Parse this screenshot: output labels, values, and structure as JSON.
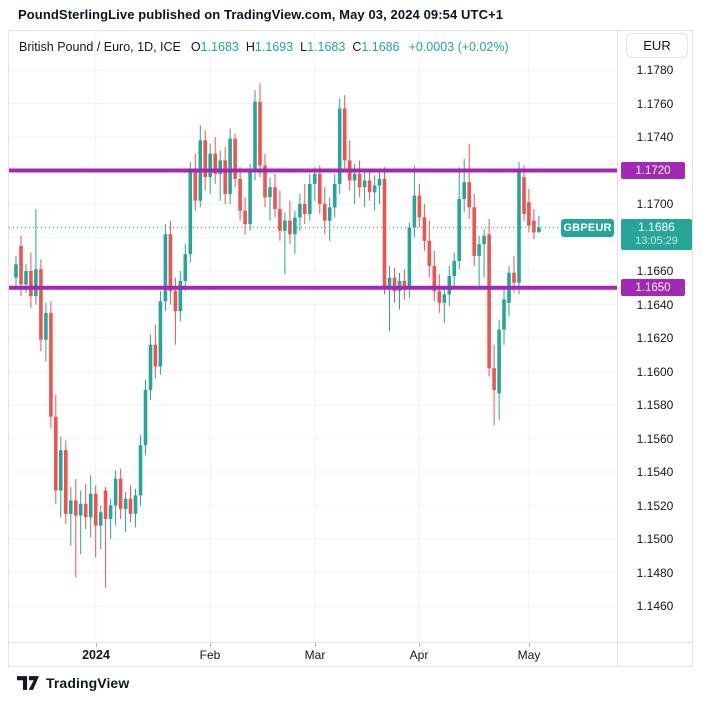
{
  "header": {
    "attribution": "PoundSterlingLive published on TradingView.com, May 03, 2024 09:54 UTC+1"
  },
  "legend": {
    "symbol": "British Pound / Euro, 1D, ICE",
    "ohlc": [
      {
        "label": "O",
        "value": "1.1683"
      },
      {
        "label": "H",
        "value": "1.1693"
      },
      {
        "label": "L",
        "value": "1.1683"
      },
      {
        "label": "C",
        "value": "1.1686"
      }
    ],
    "change": "+0.0003 (+0.02%)"
  },
  "currency_button": {
    "label": "EUR"
  },
  "price_scale": {
    "visible_ticks": [
      1.178,
      1.176,
      1.174,
      1.17,
      1.166,
      1.164,
      1.162,
      1.16,
      1.158,
      1.156,
      1.154,
      1.152,
      1.15,
      1.148,
      1.146
    ]
  },
  "levels": [
    {
      "price": 1.172,
      "label": "1.1720"
    },
    {
      "price": 1.165,
      "label": "1.1650"
    }
  ],
  "last_price": {
    "symbol_label": "GBPEUR",
    "price": 1.1686,
    "label": "1.1686",
    "countdown": "13:05:29"
  },
  "footer": {
    "brand": "TradingView"
  },
  "colors": {
    "up": "#26a69a",
    "down": "#ef5350",
    "level": "#a228b5",
    "last_price_line": "#26a69a",
    "grid": "#f0f3fa",
    "border": "#e0e3eb",
    "text": "#131722"
  },
  "chart_data": {
    "type": "candlestick",
    "title": "British Pound / Euro, 1D, ICE",
    "symbol": "GBPEUR",
    "timeframe": "1D",
    "y_axis": {
      "min": 1.146,
      "max": 1.178,
      "tick_step": 0.002
    },
    "x_axis_months": [
      {
        "label": "2024",
        "candle_index": 16,
        "bold": true
      },
      {
        "label": "Feb",
        "candle_index": 39,
        "bold": false
      },
      {
        "label": "Mar",
        "candle_index": 60,
        "bold": false
      },
      {
        "label": "Apr",
        "candle_index": 81,
        "bold": false
      },
      {
        "label": "May",
        "candle_index": 103,
        "bold": false
      }
    ],
    "horizontal_levels": [
      1.172,
      1.165
    ],
    "last_price_dotted_line": 1.1686,
    "candles_format": [
      "open",
      "high",
      "low",
      "close"
    ],
    "candles": [
      [
        1.1656,
        1.1669,
        1.165,
        1.1664
      ],
      [
        1.1675,
        1.1681,
        1.1645,
        1.1652
      ],
      [
        1.1652,
        1.1664,
        1.1647,
        1.166
      ],
      [
        1.166,
        1.1671,
        1.1638,
        1.1645
      ],
      [
        1.1645,
        1.1697,
        1.164,
        1.1661
      ],
      [
        1.1661,
        1.1667,
        1.1612,
        1.1619
      ],
      [
        1.1619,
        1.1641,
        1.1606,
        1.1635
      ],
      [
        1.1635,
        1.1642,
        1.1566,
        1.1573
      ],
      [
        1.1573,
        1.1586,
        1.1521,
        1.1529
      ],
      [
        1.1529,
        1.1561,
        1.1513,
        1.1553
      ],
      [
        1.1553,
        1.1559,
        1.1509,
        1.1515
      ],
      [
        1.1515,
        1.1531,
        1.1496,
        1.1523
      ],
      [
        1.1523,
        1.1536,
        1.1477,
        1.1514
      ],
      [
        1.1514,
        1.1529,
        1.1491,
        1.1521
      ],
      [
        1.1521,
        1.1533,
        1.1506,
        1.1513
      ],
      [
        1.1513,
        1.1538,
        1.1501,
        1.1527
      ],
      [
        1.1527,
        1.1532,
        1.1489,
        1.1508
      ],
      [
        1.1508,
        1.152,
        1.1494,
        1.1516
      ],
      [
        1.1529,
        1.1531,
        1.1471,
        1.1512
      ],
      [
        1.1512,
        1.1524,
        1.15,
        1.152
      ],
      [
        1.152,
        1.1541,
        1.1508,
        1.1536
      ],
      [
        1.1536,
        1.1542,
        1.1512,
        1.1518
      ],
      [
        1.1518,
        1.1528,
        1.1504,
        1.1524
      ],
      [
        1.1524,
        1.1532,
        1.151,
        1.1515
      ],
      [
        1.1515,
        1.153,
        1.1507,
        1.1526
      ],
      [
        1.1526,
        1.1562,
        1.152,
        1.1556
      ],
      [
        1.1556,
        1.1595,
        1.155,
        1.1589
      ],
      [
        1.1589,
        1.1622,
        1.1583,
        1.1616
      ],
      [
        1.1616,
        1.1628,
        1.1596,
        1.1603
      ],
      [
        1.1603,
        1.1648,
        1.1598,
        1.1642
      ],
      [
        1.1642,
        1.1688,
        1.1636,
        1.1682
      ],
      [
        1.1682,
        1.169,
        1.164,
        1.1648
      ],
      [
        1.1648,
        1.1656,
        1.1616,
        1.1636
      ],
      [
        1.1636,
        1.166,
        1.163,
        1.1654
      ],
      [
        1.1654,
        1.1676,
        1.1648,
        1.167
      ],
      [
        1.167,
        1.1725,
        1.1665,
        1.172
      ],
      [
        1.172,
        1.173,
        1.1696,
        1.1702
      ],
      [
        1.1702,
        1.1747,
        1.1698,
        1.1738
      ],
      [
        1.1738,
        1.1744,
        1.1708,
        1.1716
      ],
      [
        1.1716,
        1.1736,
        1.1706,
        1.173
      ],
      [
        1.173,
        1.174,
        1.1712,
        1.1718
      ],
      [
        1.1718,
        1.1732,
        1.1702,
        1.1726
      ],
      [
        1.1726,
        1.1734,
        1.17,
        1.1706
      ],
      [
        1.1706,
        1.1745,
        1.17,
        1.1739
      ],
      [
        1.1739,
        1.1742,
        1.171,
        1.1715
      ],
      [
        1.1715,
        1.1722,
        1.169,
        1.1696
      ],
      [
        1.1696,
        1.1704,
        1.1682,
        1.1688
      ],
      [
        1.1688,
        1.1724,
        1.1684,
        1.1719
      ],
      [
        1.1719,
        1.1768,
        1.1714,
        1.1761
      ],
      [
        1.1761,
        1.1772,
        1.1716,
        1.1723
      ],
      [
        1.1723,
        1.173,
        1.1698,
        1.1704
      ],
      [
        1.1704,
        1.1716,
        1.169,
        1.171
      ],
      [
        1.171,
        1.1718,
        1.1692,
        1.1697
      ],
      [
        1.1697,
        1.1708,
        1.1678,
        1.1684
      ],
      [
        1.1684,
        1.1695,
        1.1658,
        1.169
      ],
      [
        1.169,
        1.1702,
        1.1676,
        1.1682
      ],
      [
        1.1682,
        1.1696,
        1.167,
        1.1692
      ],
      [
        1.1692,
        1.1706,
        1.1684,
        1.17
      ],
      [
        1.17,
        1.1712,
        1.1688,
        1.1694
      ],
      [
        1.1694,
        1.1718,
        1.169,
        1.1712
      ],
      [
        1.1712,
        1.1722,
        1.1702,
        1.1718
      ],
      [
        1.1718,
        1.1723,
        1.1694,
        1.17
      ],
      [
        1.17,
        1.171,
        1.1682,
        1.169
      ],
      [
        1.169,
        1.1704,
        1.1678,
        1.1698
      ],
      [
        1.1698,
        1.1718,
        1.1692,
        1.1712
      ],
      [
        1.1712,
        1.1763,
        1.1706,
        1.1757
      ],
      [
        1.1757,
        1.1765,
        1.172,
        1.1726
      ],
      [
        1.1726,
        1.1738,
        1.1708,
        1.1714
      ],
      [
        1.1714,
        1.1724,
        1.17,
        1.1718
      ],
      [
        1.1718,
        1.1726,
        1.1704,
        1.171
      ],
      [
        1.171,
        1.172,
        1.1698,
        1.1714
      ],
      [
        1.1714,
        1.1721,
        1.1702,
        1.1707
      ],
      [
        1.1707,
        1.1717,
        1.1696,
        1.1711
      ],
      [
        1.1711,
        1.1719,
        1.17,
        1.1715
      ],
      [
        1.1715,
        1.1722,
        1.1646,
        1.1651
      ],
      [
        1.1651,
        1.1663,
        1.1624,
        1.1656
      ],
      [
        1.1656,
        1.1662,
        1.1641,
        1.1648
      ],
      [
        1.1648,
        1.1659,
        1.1637,
        1.1654
      ],
      [
        1.1654,
        1.1661,
        1.1643,
        1.1649
      ],
      [
        1.1649,
        1.1689,
        1.1644,
        1.1686
      ],
      [
        1.1686,
        1.1723,
        1.168,
        1.1705
      ],
      [
        1.1705,
        1.1712,
        1.1686,
        1.1692
      ],
      [
        1.1692,
        1.17,
        1.1672,
        1.1678
      ],
      [
        1.1678,
        1.169,
        1.1656,
        1.1663
      ],
      [
        1.1663,
        1.1672,
        1.1642,
        1.1648
      ],
      [
        1.1648,
        1.1658,
        1.1635,
        1.1641
      ],
      [
        1.1641,
        1.1651,
        1.1629,
        1.1646
      ],
      [
        1.1646,
        1.1663,
        1.1639,
        1.1657
      ],
      [
        1.1657,
        1.1671,
        1.1649,
        1.1666
      ],
      [
        1.1666,
        1.1722,
        1.1661,
        1.1703
      ],
      [
        1.1703,
        1.1727,
        1.1695,
        1.1713
      ],
      [
        1.1713,
        1.1736,
        1.1691,
        1.1698
      ],
      [
        1.1698,
        1.1706,
        1.1663,
        1.1669
      ],
      [
        1.1669,
        1.1681,
        1.1651,
        1.1676
      ],
      [
        1.1676,
        1.1685,
        1.1656,
        1.1681
      ],
      [
        1.1682,
        1.1691,
        1.1597,
        1.1602
      ],
      [
        1.1602,
        1.1616,
        1.1568,
        1.1589
      ],
      [
        1.1587,
        1.1631,
        1.1571,
        1.1625
      ],
      [
        1.1625,
        1.1649,
        1.1616,
        1.1643
      ],
      [
        1.1641,
        1.1663,
        1.1633,
        1.1659
      ],
      [
        1.1659,
        1.1669,
        1.1647,
        1.1653
      ],
      [
        1.1653,
        1.1725,
        1.1646,
        1.172
      ],
      [
        1.1716,
        1.1723,
        1.169,
        1.1694
      ],
      [
        1.1701,
        1.1709,
        1.1683,
        1.1687
      ],
      [
        1.169,
        1.1697,
        1.1679,
        1.1683
      ],
      [
        1.1683,
        1.1693,
        1.1683,
        1.1686
      ]
    ]
  }
}
